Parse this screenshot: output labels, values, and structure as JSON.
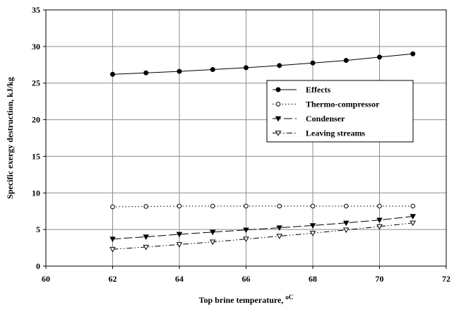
{
  "chart_data": {
    "type": "line",
    "title": "",
    "xlabel": "Top brine temperature, ",
    "xlabel_unit": "oC",
    "ylabel": "Specific exergy destruction, kJ/kg",
    "xlim": [
      60,
      72
    ],
    "ylim": [
      0,
      35
    ],
    "x_ticks": [
      60,
      62,
      64,
      66,
      68,
      70,
      72
    ],
    "y_ticks": [
      0,
      5,
      10,
      15,
      20,
      25,
      30,
      35
    ],
    "grid": true,
    "legend_position": "right-middle",
    "x": [
      62,
      63,
      64,
      65,
      66,
      67,
      68,
      69,
      70,
      71
    ],
    "series": [
      {
        "name": "Effects",
        "values": [
          26.2,
          26.4,
          26.6,
          26.85,
          27.1,
          27.4,
          27.75,
          28.1,
          28.55,
          29.0
        ],
        "marker": "filled-circle",
        "line": "solid"
      },
      {
        "name": "Thermo-compressor",
        "values": [
          8.1,
          8.15,
          8.2,
          8.2,
          8.2,
          8.2,
          8.2,
          8.2,
          8.2,
          8.2
        ],
        "marker": "open-circle",
        "line": "dotted"
      },
      {
        "name": "Condenser",
        "values": [
          3.7,
          4.0,
          4.35,
          4.65,
          4.95,
          5.25,
          5.55,
          5.9,
          6.3,
          6.8
        ],
        "marker": "filled-triangle-down",
        "line": "long-dash"
      },
      {
        "name": "Leaving streams",
        "values": [
          2.3,
          2.6,
          2.95,
          3.3,
          3.7,
          4.1,
          4.5,
          4.95,
          5.4,
          5.9
        ],
        "marker": "open-triangle-down",
        "line": "dash-dot-dot"
      }
    ]
  }
}
